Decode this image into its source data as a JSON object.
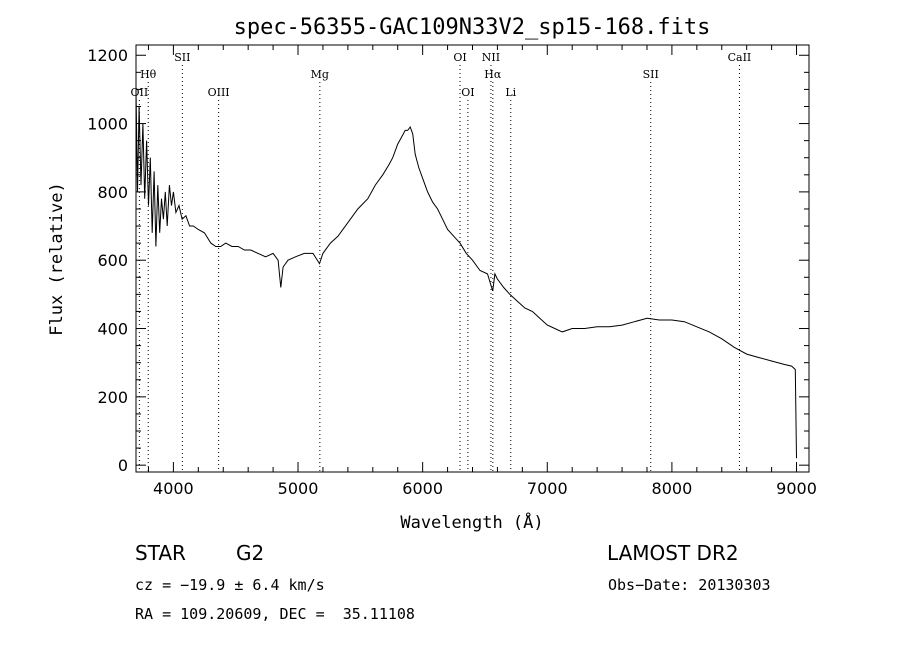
{
  "chart_data": {
    "type": "line",
    "title": "spec-56355-GAC109N33V2_sp15-168.fits",
    "xlabel": "Wavelength (Å)",
    "ylabel": "Flux (relative)",
    "xlim": [
      3700,
      9100
    ],
    "ylim": [
      -20,
      1230
    ],
    "xticks": [
      4000,
      5000,
      6000,
      7000,
      8000,
      9000
    ],
    "yticks": [
      0,
      200,
      400,
      600,
      800,
      1000,
      1200
    ],
    "tick_labels_x": [
      "4000",
      "5000",
      "6000",
      "7000",
      "8000",
      "9000"
    ],
    "tick_labels_y": [
      "0",
      "200",
      "400",
      "600",
      "800",
      "1000",
      "1200"
    ],
    "grid": false,
    "series": [
      {
        "x": [
          3700,
          3712,
          3725,
          3740,
          3755,
          3770,
          3785,
          3800,
          3815,
          3830,
          3845,
          3860,
          3875,
          3890,
          3905,
          3920,
          3935,
          3950,
          3968,
          3985,
          4000,
          4020,
          4045,
          4070,
          4100,
          4130,
          4160,
          4200,
          4250,
          4300,
          4340,
          4380,
          4420,
          4470,
          4520,
          4570,
          4620,
          4680,
          4740,
          4800,
          4840,
          4862,
          4880,
          4920,
          4980,
          5050,
          5120,
          5172,
          5200,
          5260,
          5320,
          5400,
          5480,
          5560,
          5620,
          5680,
          5730,
          5760,
          5780,
          5800,
          5830,
          5860,
          5880,
          5900,
          5920,
          5940,
          5970,
          6000,
          6040,
          6080,
          6120,
          6160,
          6200,
          6250,
          6300,
          6350,
          6400,
          6460,
          6520,
          6562,
          6580,
          6600,
          6650,
          6700,
          6760,
          6820,
          6880,
          6940,
          7000,
          7060,
          7120,
          7200,
          7300,
          7400,
          7500,
          7600,
          7700,
          7800,
          7900,
          8000,
          8100,
          8200,
          8300,
          8400,
          8500,
          8600,
          8700,
          8800,
          8900,
          8960,
          8990,
          9000
        ],
        "y": [
          1100,
          800,
          1050,
          820,
          1000,
          780,
          950,
          760,
          900,
          680,
          860,
          640,
          820,
          680,
          780,
          720,
          800,
          700,
          820,
          760,
          800,
          740,
          760,
          720,
          730,
          700,
          700,
          690,
          680,
          650,
          640,
          640,
          650,
          640,
          640,
          630,
          630,
          620,
          610,
          620,
          600,
          520,
          580,
          600,
          610,
          620,
          620,
          590,
          620,
          650,
          670,
          710,
          750,
          780,
          820,
          850,
          880,
          900,
          920,
          940,
          960,
          980,
          980,
          990,
          970,
          910,
          870,
          840,
          800,
          770,
          750,
          720,
          690,
          670,
          650,
          620,
          600,
          570,
          560,
          510,
          560,
          545,
          520,
          500,
          480,
          460,
          450,
          430,
          410,
          400,
          390,
          400,
          400,
          405,
          405,
          410,
          420,
          430,
          425,
          425,
          420,
          405,
          390,
          370,
          345,
          325,
          315,
          305,
          295,
          290,
          280,
          20
        ]
      }
    ],
    "line_ids": [
      {
        "label": "OII",
        "x": 3727,
        "row": 3
      },
      {
        "label": "Hθ",
        "x": 3798,
        "row": 2
      },
      {
        "label": "SII",
        "x": 4072,
        "row": 1
      },
      {
        "label": "OIII",
        "x": 4363,
        "row": 3
      },
      {
        "label": "Mg",
        "x": 5175,
        "row": 2
      },
      {
        "label": "OI",
        "x": 6300,
        "row": 1
      },
      {
        "label": "OI",
        "x": 6363,
        "row": 3
      },
      {
        "label": "NII",
        "x": 6548,
        "row": 1
      },
      {
        "label": "Hα",
        "x": 6563,
        "row": 2
      },
      {
        "label": "Li",
        "x": 6707,
        "row": 3
      },
      {
        "label": "SII",
        "x": 7830,
        "row": 2
      },
      {
        "label": "CaII",
        "x": 8542,
        "row": 1
      }
    ]
  },
  "info": {
    "object_type": "STAR",
    "subclass": "G2",
    "survey": "LAMOST DR2",
    "cz": "cz = −19.9 ± 6.4 km/s",
    "obs_date": "Obs−Date: 20130303",
    "coords": "RA = 109.20609, DEC =  35.11108"
  }
}
